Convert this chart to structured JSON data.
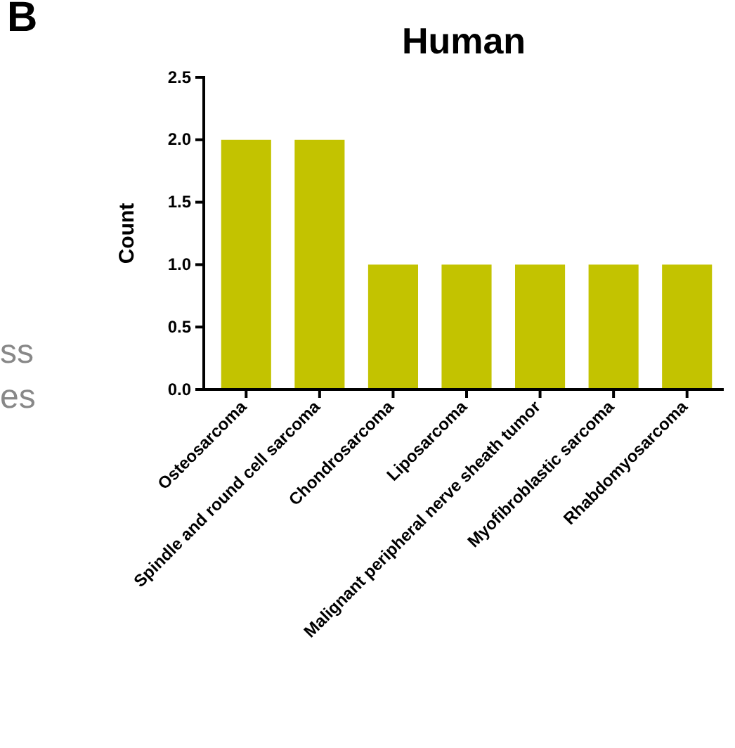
{
  "chart_data": {
    "type": "bar",
    "title": "Human",
    "ylabel": "Count",
    "categories": [
      "Osteosarcoma",
      "Spindle and round cell sarcoma",
      "Chondrosarcoma",
      "Liposarcoma",
      "Malignant peripheral nerve sheath tumor",
      "Myofibroblastic sarcoma",
      "Rhabdomyosarcoma"
    ],
    "values": [
      2,
      2,
      1,
      1,
      1,
      1,
      1
    ],
    "color": "#c3c300",
    "ylim": [
      0,
      2.5
    ],
    "yticks": [
      {
        "value": 0,
        "label": "0.0"
      },
      {
        "value": 0.5,
        "label": "0.5"
      },
      {
        "value": 1,
        "label": "1.0"
      },
      {
        "value": 1.5,
        "label": "1.5"
      },
      {
        "value": 2,
        "label": "2.0"
      },
      {
        "value": 2.5,
        "label": "2.5"
      }
    ],
    "grid": false,
    "annotations": [
      "B",
      "ss",
      "es"
    ]
  }
}
